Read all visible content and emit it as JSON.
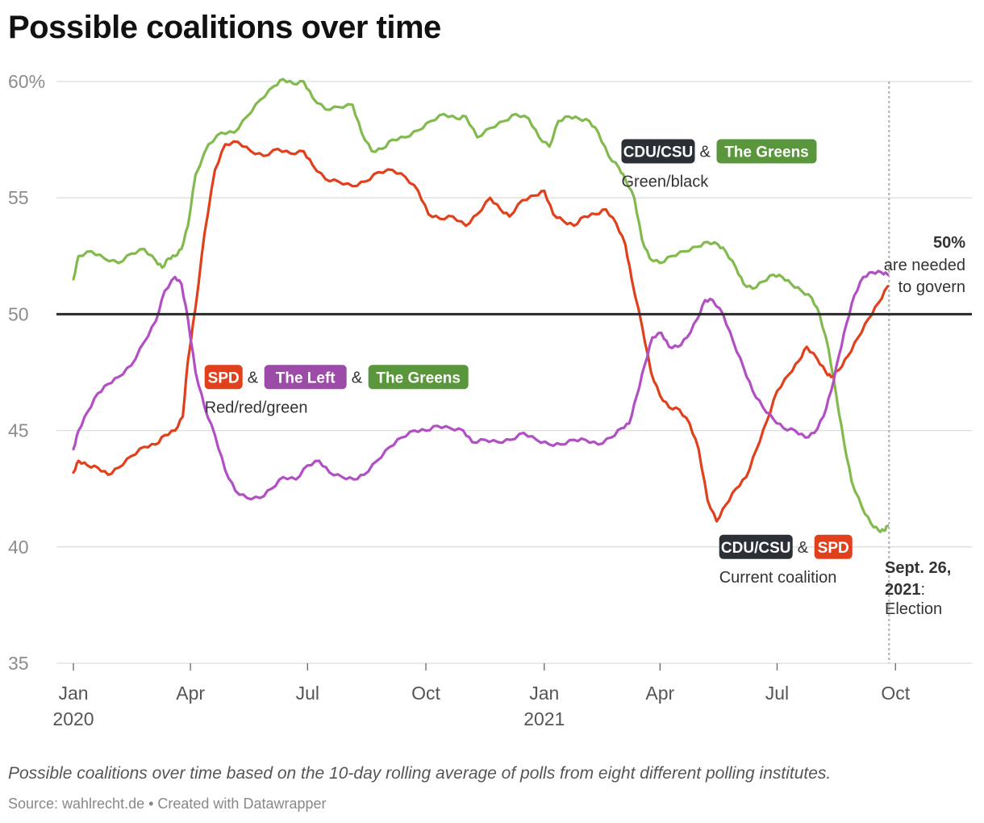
{
  "title": "Possible coalitions over time",
  "notes": "Possible coalitions over time based on the 10-day rolling average of polls from eight different polling institutes.",
  "source": "Source: wahlrecht.de • Created with Datawrapper",
  "chart_data": {
    "type": "line",
    "title": "Possible coalitions over time",
    "ylim": [
      35,
      60
    ],
    "yticks": [
      "60%",
      "55",
      "50",
      "45",
      "40",
      "35"
    ],
    "xticks": [
      {
        "date": "2020-01-01",
        "line1": "Jan",
        "line2": "2020"
      },
      {
        "date": "2020-04-01",
        "line1": "Apr",
        "line2": ""
      },
      {
        "date": "2020-07-01",
        "line1": "Jul",
        "line2": ""
      },
      {
        "date": "2020-10-01",
        "line1": "Oct",
        "line2": ""
      },
      {
        "date": "2021-01-01",
        "line1": "Jan",
        "line2": "2021"
      },
      {
        "date": "2021-04-01",
        "line1": "Apr",
        "line2": ""
      },
      {
        "date": "2021-07-01",
        "line1": "Jul",
        "line2": ""
      },
      {
        "date": "2021-10-01",
        "line1": "Oct",
        "line2": ""
      }
    ],
    "xlim": [
      "2020-01-01",
      "2021-11-15"
    ],
    "grid": true,
    "threshold": {
      "value": 50,
      "bold_label": "50%",
      "label_lines": [
        "are needed",
        "to govern"
      ]
    },
    "event": {
      "date": "2021-09-26",
      "label_bold_1": "Sept. 26,",
      "label_bold_2": "2021",
      "label_colon": ":",
      "label_rest": "Election"
    },
    "colors": {
      "cdu": "#2b2f36",
      "spd": "#e0401c",
      "left": "#b04bbf",
      "greens": "#7fb546",
      "greens_pill": "#5a973c",
      "left_pill": "#9c4ba8",
      "spd_pill": "#e0401c"
    },
    "series": [
      {
        "key": "green_black",
        "color": "#82ba4e",
        "points": [
          [
            "2020-01-01",
            51.5
          ],
          [
            "2020-01-05",
            52.5
          ],
          [
            "2020-01-15",
            52.7
          ],
          [
            "2020-01-25",
            52.4
          ],
          [
            "2020-02-05",
            52.2
          ],
          [
            "2020-02-15",
            52.6
          ],
          [
            "2020-02-25",
            52.8
          ],
          [
            "2020-03-05",
            52.3
          ],
          [
            "2020-03-10",
            52.0
          ],
          [
            "2020-03-15",
            52.4
          ],
          [
            "2020-03-20",
            52.5
          ],
          [
            "2020-03-25",
            52.8
          ],
          [
            "2020-03-30",
            53.8
          ],
          [
            "2020-04-05",
            56.0
          ],
          [
            "2020-04-15",
            57.3
          ],
          [
            "2020-04-25",
            57.8
          ],
          [
            "2020-05-05",
            57.8
          ],
          [
            "2020-05-15",
            58.5
          ],
          [
            "2020-05-25",
            59.2
          ],
          [
            "2020-06-05",
            59.8
          ],
          [
            "2020-06-12",
            60.1
          ],
          [
            "2020-06-20",
            59.9
          ],
          [
            "2020-06-28",
            60.0
          ],
          [
            "2020-07-05",
            59.3
          ],
          [
            "2020-07-15",
            58.8
          ],
          [
            "2020-07-25",
            58.9
          ],
          [
            "2020-08-05",
            59.0
          ],
          [
            "2020-08-12",
            57.8
          ],
          [
            "2020-08-20",
            57.0
          ],
          [
            "2020-08-28",
            57.1
          ],
          [
            "2020-09-05",
            57.5
          ],
          [
            "2020-09-15",
            57.6
          ],
          [
            "2020-09-25",
            57.9
          ],
          [
            "2020-10-05",
            58.3
          ],
          [
            "2020-10-15",
            58.6
          ],
          [
            "2020-10-25",
            58.4
          ],
          [
            "2020-11-01",
            58.5
          ],
          [
            "2020-11-10",
            57.6
          ],
          [
            "2020-11-20",
            58.0
          ],
          [
            "2020-12-01",
            58.3
          ],
          [
            "2020-12-10",
            58.6
          ],
          [
            "2020-12-20",
            58.4
          ],
          [
            "2020-12-28",
            57.6
          ],
          [
            "2021-01-05",
            57.2
          ],
          [
            "2021-01-12",
            58.3
          ],
          [
            "2021-01-20",
            58.5
          ],
          [
            "2021-01-28",
            58.4
          ],
          [
            "2021-02-05",
            58.3
          ],
          [
            "2021-02-12",
            57.8
          ],
          [
            "2021-02-20",
            56.8
          ],
          [
            "2021-02-28",
            56.3
          ],
          [
            "2021-03-05",
            55.8
          ],
          [
            "2021-03-12",
            55.0
          ],
          [
            "2021-03-18",
            53.2
          ],
          [
            "2021-03-24",
            52.4
          ],
          [
            "2021-04-01",
            52.2
          ],
          [
            "2021-04-10",
            52.5
          ],
          [
            "2021-04-20",
            52.7
          ],
          [
            "2021-04-30",
            52.9
          ],
          [
            "2021-05-08",
            53.1
          ],
          [
            "2021-05-16",
            53.0
          ],
          [
            "2021-05-22",
            52.7
          ],
          [
            "2021-05-30",
            52.0
          ],
          [
            "2021-06-05",
            51.3
          ],
          [
            "2021-06-12",
            51.1
          ],
          [
            "2021-06-20",
            51.4
          ],
          [
            "2021-06-28",
            51.7
          ],
          [
            "2021-07-05",
            51.6
          ],
          [
            "2021-07-12",
            51.3
          ],
          [
            "2021-07-20",
            51.0
          ],
          [
            "2021-07-28",
            50.7
          ],
          [
            "2021-08-03",
            50.0
          ],
          [
            "2021-08-10",
            48.5
          ],
          [
            "2021-08-16",
            46.5
          ],
          [
            "2021-08-22",
            44.5
          ],
          [
            "2021-08-28",
            42.8
          ],
          [
            "2021-09-05",
            41.7
          ],
          [
            "2021-09-12",
            41.0
          ],
          [
            "2021-09-18",
            40.7
          ],
          [
            "2021-09-22",
            40.7
          ],
          [
            "2021-09-25",
            40.9
          ]
        ]
      },
      {
        "key": "current",
        "color": "#e0401c",
        "points": [
          [
            "2020-01-01",
            43.2
          ],
          [
            "2020-01-05",
            43.7
          ],
          [
            "2020-01-12",
            43.5
          ],
          [
            "2020-01-20",
            43.4
          ],
          [
            "2020-01-28",
            43.1
          ],
          [
            "2020-02-05",
            43.4
          ],
          [
            "2020-02-15",
            43.9
          ],
          [
            "2020-02-25",
            44.3
          ],
          [
            "2020-03-05",
            44.4
          ],
          [
            "2020-03-12",
            44.8
          ],
          [
            "2020-03-20",
            45.0
          ],
          [
            "2020-03-26",
            45.6
          ],
          [
            "2020-03-30",
            48.0
          ],
          [
            "2020-04-05",
            50.3
          ],
          [
            "2020-04-12",
            53.5
          ],
          [
            "2020-04-20",
            56.2
          ],
          [
            "2020-04-28",
            57.3
          ],
          [
            "2020-05-08",
            57.4
          ],
          [
            "2020-05-18",
            57.0
          ],
          [
            "2020-05-28",
            56.8
          ],
          [
            "2020-06-08",
            57.1
          ],
          [
            "2020-06-18",
            56.9
          ],
          [
            "2020-06-28",
            57.0
          ],
          [
            "2020-07-05",
            56.4
          ],
          [
            "2020-07-15",
            55.8
          ],
          [
            "2020-07-25",
            55.7
          ],
          [
            "2020-08-05",
            55.5
          ],
          [
            "2020-08-15",
            55.7
          ],
          [
            "2020-08-25",
            56.1
          ],
          [
            "2020-09-05",
            56.2
          ],
          [
            "2020-09-15",
            55.9
          ],
          [
            "2020-09-25",
            55.3
          ],
          [
            "2020-10-03",
            54.3
          ],
          [
            "2020-10-12",
            54.1
          ],
          [
            "2020-10-22",
            54.2
          ],
          [
            "2020-11-01",
            53.8
          ],
          [
            "2020-11-10",
            54.3
          ],
          [
            "2020-11-20",
            55.0
          ],
          [
            "2020-11-28",
            54.5
          ],
          [
            "2020-12-05",
            54.2
          ],
          [
            "2020-12-15",
            54.9
          ],
          [
            "2020-12-25",
            55.1
          ],
          [
            "2021-01-01",
            55.3
          ],
          [
            "2021-01-08",
            54.3
          ],
          [
            "2021-01-16",
            54.0
          ],
          [
            "2021-01-24",
            53.8
          ],
          [
            "2021-02-01",
            54.2
          ],
          [
            "2021-02-10",
            54.3
          ],
          [
            "2021-02-18",
            54.5
          ],
          [
            "2021-02-26",
            53.9
          ],
          [
            "2021-03-05",
            53.0
          ],
          [
            "2021-03-10",
            51.5
          ],
          [
            "2021-03-18",
            49.5
          ],
          [
            "2021-03-25",
            47.5
          ],
          [
            "2021-04-01",
            46.5
          ],
          [
            "2021-04-08",
            46.0
          ],
          [
            "2021-04-16",
            45.9
          ],
          [
            "2021-04-24",
            45.3
          ],
          [
            "2021-05-01",
            44.2
          ],
          [
            "2021-05-08",
            42.0
          ],
          [
            "2021-05-15",
            41.1
          ],
          [
            "2021-05-22",
            41.8
          ],
          [
            "2021-05-30",
            42.5
          ],
          [
            "2021-06-07",
            43.0
          ],
          [
            "2021-06-15",
            44.2
          ],
          [
            "2021-06-23",
            45.4
          ],
          [
            "2021-07-01",
            46.7
          ],
          [
            "2021-07-10",
            47.4
          ],
          [
            "2021-07-18",
            48.0
          ],
          [
            "2021-07-24",
            48.6
          ],
          [
            "2021-08-01",
            48.1
          ],
          [
            "2021-08-08",
            47.5
          ],
          [
            "2021-08-12",
            47.3
          ],
          [
            "2021-08-18",
            47.6
          ],
          [
            "2021-08-25",
            48.2
          ],
          [
            "2021-09-02",
            49.0
          ],
          [
            "2021-09-10",
            49.8
          ],
          [
            "2021-09-18",
            50.5
          ],
          [
            "2021-09-25",
            51.2
          ]
        ]
      },
      {
        "key": "red_red_green",
        "color": "#b24fc4",
        "points": [
          [
            "2020-01-01",
            44.2
          ],
          [
            "2020-01-05",
            45.0
          ],
          [
            "2020-01-12",
            45.8
          ],
          [
            "2020-01-20",
            46.6
          ],
          [
            "2020-01-28",
            47.0
          ],
          [
            "2020-02-05",
            47.3
          ],
          [
            "2020-02-15",
            47.8
          ],
          [
            "2020-02-25",
            48.8
          ],
          [
            "2020-03-05",
            49.7
          ],
          [
            "2020-03-12",
            51.0
          ],
          [
            "2020-03-20",
            51.6
          ],
          [
            "2020-03-25",
            51.3
          ],
          [
            "2020-03-30",
            49.8
          ],
          [
            "2020-04-05",
            47.5
          ],
          [
            "2020-04-12",
            46.0
          ],
          [
            "2020-04-20",
            44.8
          ],
          [
            "2020-04-28",
            43.3
          ],
          [
            "2020-05-06",
            42.4
          ],
          [
            "2020-05-15",
            42.1
          ],
          [
            "2020-05-25",
            42.1
          ],
          [
            "2020-06-03",
            42.5
          ],
          [
            "2020-06-12",
            43.0
          ],
          [
            "2020-06-22",
            42.9
          ],
          [
            "2020-07-01",
            43.5
          ],
          [
            "2020-07-10",
            43.7
          ],
          [
            "2020-07-18",
            43.2
          ],
          [
            "2020-07-28",
            43.0
          ],
          [
            "2020-08-06",
            42.9
          ],
          [
            "2020-08-14",
            43.1
          ],
          [
            "2020-08-24",
            43.7
          ],
          [
            "2020-09-03",
            44.3
          ],
          [
            "2020-09-12",
            44.7
          ],
          [
            "2020-09-22",
            45.0
          ],
          [
            "2020-10-01",
            45.0
          ],
          [
            "2020-10-10",
            45.2
          ],
          [
            "2020-10-20",
            45.1
          ],
          [
            "2020-10-30",
            45.0
          ],
          [
            "2020-11-06",
            44.5
          ],
          [
            "2020-11-16",
            44.6
          ],
          [
            "2020-11-26",
            44.5
          ],
          [
            "2020-12-06",
            44.6
          ],
          [
            "2020-12-16",
            44.9
          ],
          [
            "2020-12-26",
            44.6
          ],
          [
            "2021-01-05",
            44.4
          ],
          [
            "2021-01-14",
            44.4
          ],
          [
            "2021-01-24",
            44.6
          ],
          [
            "2021-02-02",
            44.6
          ],
          [
            "2021-02-12",
            44.4
          ],
          [
            "2021-02-22",
            44.7
          ],
          [
            "2021-03-02",
            45.1
          ],
          [
            "2021-03-08",
            45.3
          ],
          [
            "2021-03-14",
            46.5
          ],
          [
            "2021-03-20",
            47.8
          ],
          [
            "2021-03-26",
            49.0
          ],
          [
            "2021-04-02",
            49.2
          ],
          [
            "2021-04-08",
            48.6
          ],
          [
            "2021-04-15",
            48.6
          ],
          [
            "2021-04-22",
            49.0
          ],
          [
            "2021-04-30",
            49.8
          ],
          [
            "2021-05-06",
            50.6
          ],
          [
            "2021-05-12",
            50.6
          ],
          [
            "2021-05-20",
            50.0
          ],
          [
            "2021-05-28",
            48.8
          ],
          [
            "2021-06-05",
            47.7
          ],
          [
            "2021-06-12",
            46.7
          ],
          [
            "2021-06-20",
            46.0
          ],
          [
            "2021-06-28",
            45.5
          ],
          [
            "2021-07-06",
            45.1
          ],
          [
            "2021-07-15",
            45.0
          ],
          [
            "2021-07-23",
            44.7
          ],
          [
            "2021-07-30",
            44.9
          ],
          [
            "2021-08-06",
            45.6
          ],
          [
            "2021-08-12",
            46.7
          ],
          [
            "2021-08-18",
            48.2
          ],
          [
            "2021-08-24",
            49.6
          ],
          [
            "2021-08-30",
            50.8
          ],
          [
            "2021-09-06",
            51.6
          ],
          [
            "2021-09-13",
            51.8
          ],
          [
            "2021-09-20",
            51.8
          ],
          [
            "2021-09-25",
            51.7
          ]
        ]
      }
    ],
    "annotations": [
      {
        "key": "green_black",
        "date": "2021-03-02",
        "value": 57.0,
        "pills": [
          {
            "text": "CDU/CSU",
            "color": "#2b2f36"
          },
          {
            "text": "The Greens",
            "color": "#5a973c"
          }
        ],
        "subtitle": "Green/black"
      },
      {
        "key": "red_red_green",
        "date": "2020-04-12",
        "value": 47.3,
        "pills": [
          {
            "text": "SPD",
            "color": "#e0401c"
          },
          {
            "text": "The Left",
            "color": "#9c4ba8"
          },
          {
            "text": "The Greens",
            "color": "#5a973c"
          }
        ],
        "subtitle": "Red/red/green"
      },
      {
        "key": "current",
        "date": "2021-05-17",
        "value": 40.0,
        "pills": [
          {
            "text": "CDU/CSU",
            "color": "#2b2f36"
          },
          {
            "text": "SPD",
            "color": "#e0401c"
          }
        ],
        "subtitle": "Current coalition"
      }
    ]
  }
}
